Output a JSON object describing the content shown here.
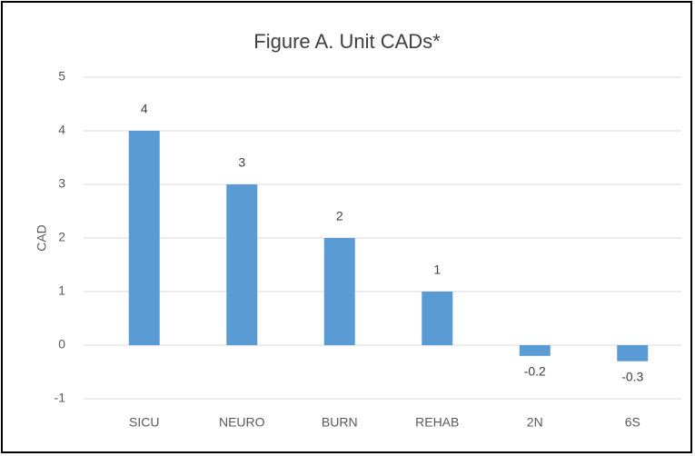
{
  "chart_data": {
    "type": "bar",
    "title": "Figure A. Unit CADs*",
    "y_label": "CAD",
    "categories": [
      "SICU",
      "NEURO",
      "BURN",
      "REHAB",
      "2N",
      "6S"
    ],
    "values": [
      4,
      3,
      2,
      1,
      -0.2,
      -0.3
    ],
    "color": "#5b9bd5",
    "ylim": [
      -1,
      5
    ],
    "yticks": [
      -1,
      0,
      1,
      2,
      3,
      4,
      5
    ],
    "grid": true,
    "data_labels": true
  }
}
